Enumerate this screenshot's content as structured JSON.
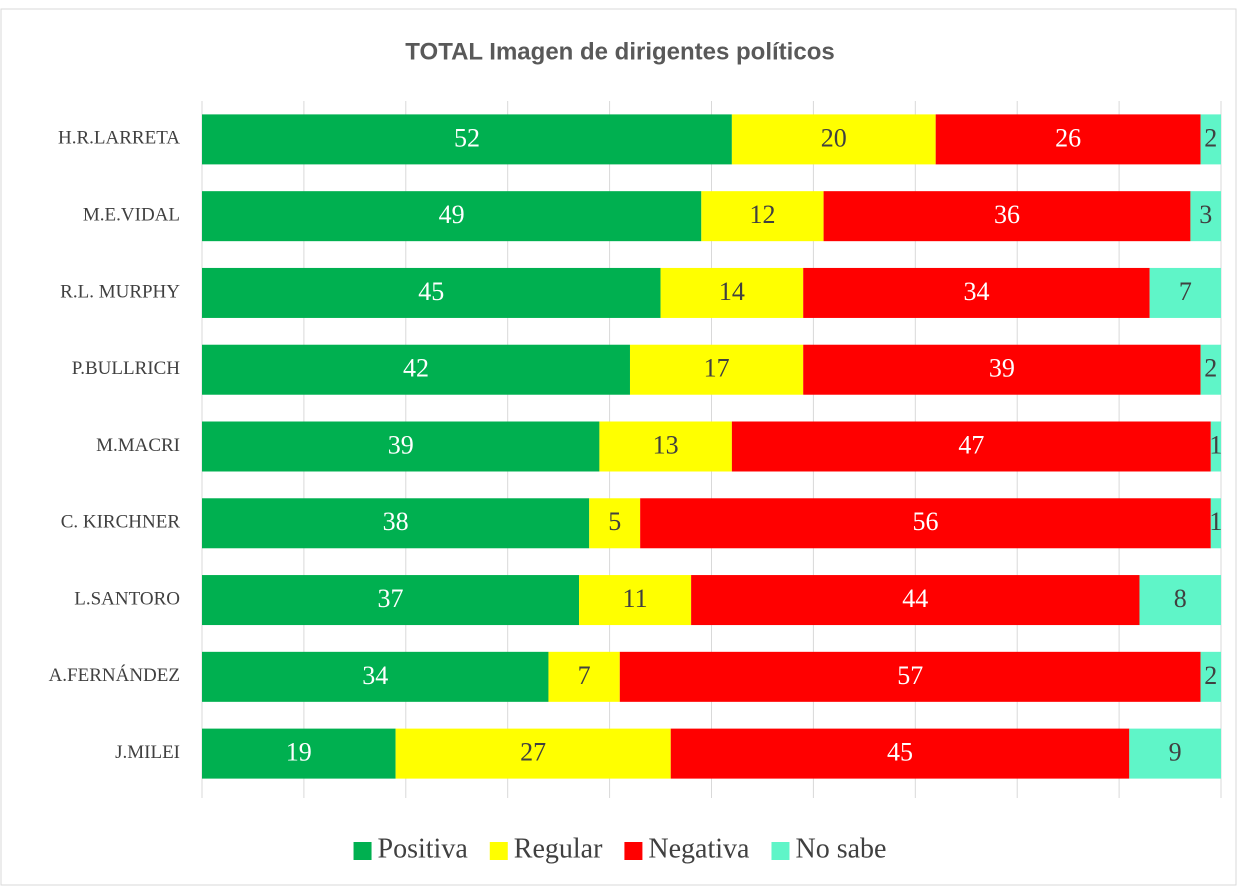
{
  "chart_data": {
    "type": "stacked_barh",
    "title": "TOTAL Imagen de dirigentes políticos",
    "categories": [
      "H.R.LARRETA",
      "M.E.VIDAL",
      "R.L. MURPHY",
      "P.BULLRICH",
      "M.MACRI",
      "C. KIRCHNER",
      "L.SANTORO",
      "A.FERNÁNDEZ",
      "J.MILEI"
    ],
    "series": [
      {
        "name": "Positiva",
        "color": "#00b050",
        "label_color": "#ffffff",
        "values": [
          52,
          49,
          45,
          42,
          39,
          38,
          37,
          34,
          19
        ]
      },
      {
        "name": "Regular",
        "color": "#ffff00",
        "label_color": "#404040",
        "values": [
          20,
          12,
          14,
          17,
          13,
          5,
          11,
          7,
          27
        ]
      },
      {
        "name": "Negativa",
        "color": "#ff0000",
        "label_color": "#ffffff",
        "values": [
          26,
          36,
          34,
          39,
          47,
          56,
          44,
          57,
          45
        ]
      },
      {
        "name": "No sabe",
        "color": "#5ff5c8",
        "label_color": "#404040",
        "values": [
          2,
          3,
          7,
          2,
          1,
          1,
          8,
          2,
          9
        ]
      }
    ],
    "xlim": [
      0,
      100
    ],
    "xticks": [
      0,
      10,
      20,
      30,
      40,
      50,
      60,
      70,
      80,
      90,
      100
    ],
    "grid": true,
    "legend": "bottom"
  }
}
